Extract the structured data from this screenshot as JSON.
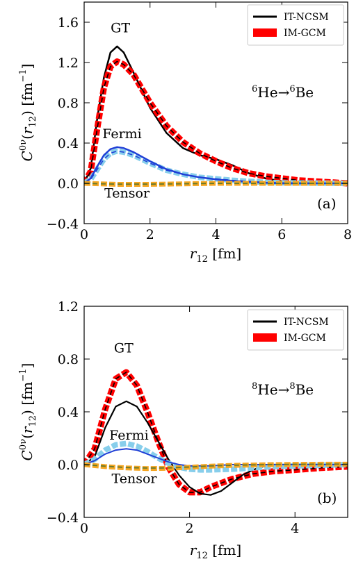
{
  "chart_data": [
    {
      "type": "line",
      "panel_label": "(a)",
      "reaction": {
        "pre1": "6",
        "el1": "He",
        "arrow": "→",
        "pre2": "6",
        "el2": "Be"
      },
      "xlabel": {
        "base": "r",
        "sub": "12",
        "unit": " [fm]"
      },
      "ylabel": {
        "base": "C",
        "sup": "0ν",
        "paren_open": "(",
        "r": "r",
        "sub": "12",
        "paren_close": ")",
        "unit_open": " [fm",
        "unit_sup": "−1",
        "unit_close": "]"
      },
      "xlim": [
        0,
        8
      ],
      "ylim": [
        -0.4,
        1.8
      ],
      "xticks": [
        0,
        2,
        4,
        6,
        8
      ],
      "yticks": [
        -0.4,
        0.0,
        0.4,
        0.8,
        1.2,
        1.6
      ],
      "ytick_labels": [
        "−0.4",
        "0.0",
        "0.4",
        "0.8",
        "1.2",
        "1.6"
      ],
      "legend": [
        {
          "name": "IT-NCSM",
          "color": "#000000",
          "style": "line"
        },
        {
          "name": "IM-GCM",
          "color": "#ff0000",
          "style": "band"
        }
      ],
      "annotations": [
        {
          "text": "GT",
          "x": 1.1,
          "y": 1.5
        },
        {
          "text": "Fermi",
          "x": 1.15,
          "y": 0.45
        },
        {
          "text": "Tensor",
          "x": 1.3,
          "y": -0.14
        }
      ],
      "series": [
        {
          "component": "GT",
          "method": "IT-NCSM",
          "color": "#000000",
          "dash": "solid",
          "width": 2.5,
          "x": [
            0,
            0.2,
            0.4,
            0.6,
            0.8,
            1.0,
            1.2,
            1.5,
            2.0,
            2.5,
            3.0,
            3.5,
            4.0,
            4.5,
            5.0,
            5.5,
            6.0,
            6.5,
            7.0,
            8.0
          ],
          "y": [
            0,
            0.15,
            0.65,
            1.05,
            1.3,
            1.36,
            1.3,
            1.1,
            0.75,
            0.5,
            0.35,
            0.28,
            0.24,
            0.18,
            0.1,
            0.05,
            0.02,
            0.0,
            0.0,
            0.0
          ]
        },
        {
          "component": "GT",
          "method": "IM-GCM",
          "color": "#ff0000",
          "dash": "band",
          "width": 9,
          "x": [
            0,
            0.2,
            0.4,
            0.6,
            0.8,
            1.0,
            1.2,
            1.5,
            2.0,
            2.5,
            3.0,
            3.5,
            4.0,
            4.5,
            5.0,
            5.5,
            6.0,
            6.5,
            7.0,
            8.0
          ],
          "y": [
            0,
            0.12,
            0.55,
            0.95,
            1.16,
            1.21,
            1.18,
            1.08,
            0.8,
            0.57,
            0.41,
            0.3,
            0.22,
            0.15,
            0.1,
            0.07,
            0.05,
            0.03,
            0.02,
            0.0
          ]
        },
        {
          "component": "GT",
          "method": "IM-GCM-dashed",
          "color": "#000000",
          "dash": "dashed",
          "width": 1.6,
          "x": [
            0,
            0.2,
            0.4,
            0.6,
            0.8,
            1.0,
            1.2,
            1.5,
            2.0,
            2.5,
            3.0,
            3.5,
            4.0,
            4.5,
            5.0,
            5.5,
            6.0,
            6.5,
            7.0,
            8.0
          ],
          "y": [
            0,
            0.12,
            0.55,
            0.95,
            1.16,
            1.21,
            1.18,
            1.08,
            0.8,
            0.57,
            0.41,
            0.3,
            0.22,
            0.15,
            0.1,
            0.07,
            0.05,
            0.03,
            0.02,
            0.0
          ]
        },
        {
          "component": "Fermi",
          "method": "IM-GCM",
          "color": "#87ceeb",
          "dash": "band",
          "width": 8,
          "x": [
            0,
            0.2,
            0.4,
            0.6,
            0.8,
            1.0,
            1.2,
            1.5,
            2.0,
            2.5,
            3.0,
            3.5,
            4.0,
            4.5,
            5.0,
            5.5,
            6.0,
            8.0
          ],
          "y": [
            0,
            0.04,
            0.14,
            0.24,
            0.3,
            0.32,
            0.31,
            0.28,
            0.2,
            0.13,
            0.09,
            0.06,
            0.045,
            0.03,
            0.02,
            0.01,
            0.005,
            0.0
          ]
        },
        {
          "component": "Fermi",
          "method": "IT-NCSM",
          "color": "#1f3fd6",
          "dash": "solid",
          "width": 2.5,
          "x": [
            0,
            0.2,
            0.4,
            0.6,
            0.8,
            1.0,
            1.2,
            1.5,
            2.0,
            2.5,
            3.0,
            3.5,
            4.0,
            4.5,
            5.0,
            5.5,
            6.0,
            8.0
          ],
          "y": [
            0,
            0.05,
            0.17,
            0.28,
            0.34,
            0.36,
            0.35,
            0.31,
            0.22,
            0.14,
            0.09,
            0.06,
            0.04,
            0.025,
            0.015,
            0.005,
            0.0,
            0.0
          ]
        },
        {
          "component": "Fermi",
          "method": "IM-GCM-dashed",
          "color": "#1f3fd6",
          "dash": "dashed",
          "width": 1.6,
          "x": [
            0,
            0.2,
            0.4,
            0.6,
            0.8,
            1.0,
            1.2,
            1.5,
            2.0,
            2.5,
            3.0,
            3.5,
            4.0,
            4.5,
            5.0,
            5.5,
            6.0,
            8.0
          ],
          "y": [
            0,
            0.04,
            0.14,
            0.24,
            0.3,
            0.32,
            0.31,
            0.28,
            0.2,
            0.13,
            0.09,
            0.06,
            0.045,
            0.03,
            0.02,
            0.01,
            0.005,
            0.0
          ]
        },
        {
          "component": "Tensor",
          "method": "IM-GCM",
          "color": "#f5a623",
          "dash": "band",
          "width": 7,
          "x": [
            0,
            1,
            2,
            3,
            4,
            5,
            6,
            7,
            8
          ],
          "y": [
            0,
            -0.01,
            -0.01,
            -0.005,
            0,
            0,
            0,
            0,
            0
          ]
        },
        {
          "component": "Tensor",
          "method": "IT-NCSM",
          "color": "#6b7b2a",
          "dash": "dashed",
          "width": 2,
          "x": [
            0,
            1,
            2,
            3,
            4,
            5,
            6,
            7,
            8
          ],
          "y": [
            0,
            -0.008,
            -0.008,
            -0.004,
            0,
            0,
            0,
            0,
            0
          ]
        }
      ]
    },
    {
      "type": "line",
      "panel_label": "(b)",
      "reaction": {
        "pre1": "8",
        "el1": "He",
        "arrow": "→",
        "pre2": "8",
        "el2": "Be"
      },
      "xlabel": {
        "base": "r",
        "sub": "12",
        "unit": " [fm]"
      },
      "ylabel": {
        "base": "C",
        "sup": "0ν",
        "paren_open": "(",
        "r": "r",
        "sub": "12",
        "paren_close": ")",
        "unit_open": " [fm",
        "unit_sup": "−1",
        "unit_close": "]"
      },
      "xlim": [
        0,
        5
      ],
      "ylim": [
        -0.4,
        1.2
      ],
      "xticks": [
        0,
        2,
        4
      ],
      "yticks": [
        -0.4,
        0.0,
        0.4,
        0.8,
        1.2
      ],
      "ytick_labels": [
        "−0.4",
        "0.0",
        "0.4",
        "0.8",
        "1.2"
      ],
      "legend": [
        {
          "name": "IT-NCSM",
          "color": "#000000",
          "style": "line"
        },
        {
          "name": "IM-GCM",
          "color": "#ff0000",
          "style": "band"
        }
      ],
      "annotations": [
        {
          "text": "GT",
          "x": 0.75,
          "y": 0.85
        },
        {
          "text": "Fermi",
          "x": 0.85,
          "y": 0.19
        },
        {
          "text": "Tensor",
          "x": 0.95,
          "y": -0.14
        }
      ],
      "series": [
        {
          "component": "GT",
          "method": "IM-GCM",
          "color": "#ff0000",
          "dash": "band",
          "width": 9,
          "x": [
            0,
            0.2,
            0.4,
            0.6,
            0.8,
            1.0,
            1.2,
            1.4,
            1.6,
            1.8,
            2.0,
            2.2,
            2.4,
            2.8,
            3.2,
            3.6,
            4.0,
            4.5,
            5.0
          ],
          "y": [
            0,
            0.12,
            0.42,
            0.65,
            0.7,
            0.6,
            0.4,
            0.18,
            -0.02,
            -0.15,
            -0.21,
            -0.21,
            -0.17,
            -0.11,
            -0.07,
            -0.05,
            -0.04,
            -0.025,
            -0.015
          ]
        },
        {
          "component": "GT",
          "method": "IM-GCM-dashed",
          "color": "#000000",
          "dash": "dashed",
          "width": 1.6,
          "x": [
            0,
            0.2,
            0.4,
            0.6,
            0.8,
            1.0,
            1.2,
            1.4,
            1.6,
            1.8,
            2.0,
            2.2,
            2.4,
            2.8,
            3.2,
            3.6,
            4.0,
            4.5,
            5.0
          ],
          "y": [
            0,
            0.12,
            0.42,
            0.65,
            0.7,
            0.6,
            0.4,
            0.18,
            -0.02,
            -0.15,
            -0.21,
            -0.21,
            -0.17,
            -0.11,
            -0.07,
            -0.05,
            -0.04,
            -0.025,
            -0.015
          ]
        },
        {
          "component": "GT",
          "method": "IT-NCSM",
          "color": "#000000",
          "dash": "solid",
          "width": 2.2,
          "x": [
            0,
            0.2,
            0.4,
            0.6,
            0.8,
            1.0,
            1.2,
            1.4,
            1.6,
            1.8,
            2.0,
            2.2,
            2.4,
            2.6,
            2.8,
            3.0,
            3.2,
            3.4,
            3.6,
            4.0,
            5.0
          ],
          "y": [
            0,
            0.06,
            0.28,
            0.44,
            0.48,
            0.44,
            0.32,
            0.18,
            0.04,
            -0.08,
            -0.17,
            -0.22,
            -0.23,
            -0.2,
            -0.14,
            -0.08,
            -0.04,
            -0.015,
            0.0,
            0.0,
            0.0
          ]
        },
        {
          "component": "Fermi",
          "method": "IM-GCM",
          "color": "#87ceeb",
          "dash": "band",
          "width": 8,
          "x": [
            0,
            0.2,
            0.4,
            0.6,
            0.8,
            1.0,
            1.2,
            1.4,
            1.6,
            1.8,
            2.0,
            2.2,
            2.4,
            2.8,
            3.2,
            3.6,
            4.0,
            5.0
          ],
          "y": [
            0,
            0.04,
            0.11,
            0.15,
            0.16,
            0.14,
            0.1,
            0.05,
            0.01,
            -0.02,
            -0.035,
            -0.04,
            -0.04,
            -0.035,
            -0.025,
            -0.015,
            -0.01,
            0.0
          ]
        },
        {
          "component": "Fermi",
          "method": "IT-NCSM",
          "color": "#1f3fd6",
          "dash": "solid",
          "width": 2,
          "x": [
            0,
            0.2,
            0.4,
            0.6,
            0.8,
            1.0,
            1.2,
            1.4,
            1.6,
            1.8,
            2.0,
            2.4,
            2.8,
            3.2,
            5.0
          ],
          "y": [
            0,
            0.03,
            0.08,
            0.11,
            0.12,
            0.11,
            0.08,
            0.05,
            0.02,
            0.0,
            -0.01,
            -0.01,
            0.0,
            0.0,
            0.0
          ]
        },
        {
          "component": "Tensor",
          "method": "IM-GCM",
          "color": "#f5a623",
          "dash": "band",
          "width": 7,
          "x": [
            0,
            0.4,
            0.8,
            1.2,
            1.6,
            2.0,
            2.4,
            2.8,
            3.2,
            3.6,
            4.0,
            4.5,
            5.0
          ],
          "y": [
            0,
            -0.015,
            -0.025,
            -0.03,
            -0.028,
            -0.02,
            -0.012,
            -0.006,
            -0.003,
            0.0,
            0.002,
            0.003,
            0.003
          ]
        },
        {
          "component": "Tensor",
          "method": "IT-NCSM",
          "color": "#6b7b2a",
          "dash": "dashed",
          "width": 2,
          "x": [
            0,
            0.4,
            0.8,
            1.2,
            1.6,
            2.0,
            2.4,
            2.8,
            3.2,
            3.6,
            4.0,
            4.5,
            5.0
          ],
          "y": [
            0,
            -0.012,
            -0.022,
            -0.026,
            -0.025,
            -0.018,
            -0.01,
            -0.005,
            -0.002,
            0.0,
            0.002,
            0.003,
            0.003
          ]
        }
      ]
    }
  ]
}
